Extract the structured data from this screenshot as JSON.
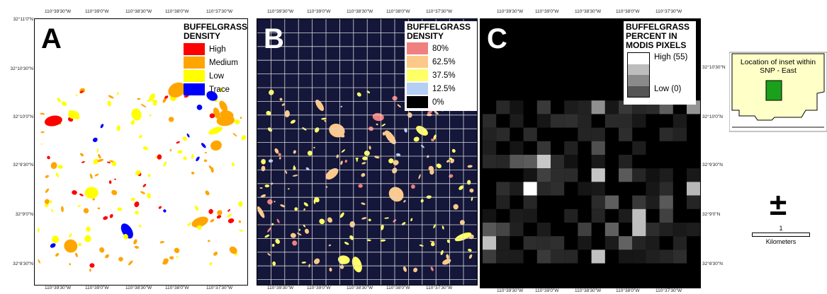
{
  "panels": {
    "a": {
      "letter": "A",
      "legend_title": "BUFFELGRASS DENSITY",
      "legend": [
        {
          "label": "High",
          "color": "#ff0000"
        },
        {
          "label": "Medium",
          "color": "#ffa500"
        },
        {
          "label": "Low",
          "color": "#ffff00"
        },
        {
          "label": "Trace",
          "color": "#0000ff"
        }
      ]
    },
    "b": {
      "letter": "B",
      "legend_title": "BUFFELGRASS DENSITY",
      "legend": [
        {
          "label": "80%",
          "color": "#f08080"
        },
        {
          "label": "62.5%",
          "color": "#fcc98a"
        },
        {
          "label": "37.5%",
          "color": "#ffff66"
        },
        {
          "label": "12.5%",
          "color": "#b5cef5"
        },
        {
          "label": "0%",
          "color": "#000000"
        }
      ]
    },
    "c": {
      "letter": "C",
      "legend_title": "BUFFELGRASS PERCENT IN MODIS PIXELS",
      "high_label": "High (55)",
      "low_label": "Low (0)"
    }
  },
  "lon_ticks": {
    "a_top": [
      "110°39'30\"W",
      "110°39'0\"W",
      "110°38'30\"W",
      "110°38'0\"W",
      "110°37'30\"W"
    ],
    "a_bottom": [
      "110°39'30\"W",
      "110°39'0\"W",
      "110°38'30\"W",
      "110°38'0\"W",
      "110°37'30\"W"
    ],
    "b_top": [
      "110°39'30\"W",
      "110°39'0\"W",
      "110°38'30\"W",
      "110°38'0\"W",
      "110°37'30\"W"
    ],
    "b_bottom": [
      "110°39'30\"W",
      "110°39'0\"W",
      "110°38'30\"W",
      "110°38'0\"W",
      "110°37'30\"W"
    ],
    "c_top": [
      "110°39'30\"W",
      "110°39'0\"W",
      "110°38'30\"W",
      "110°38'0\"W",
      "110°37'30\"W"
    ],
    "c_bottom": [
      "110°39'30\"W",
      "110°39'0\"W",
      "110°38'30\"W",
      "110°38'0\"W",
      "110°37'30\"W"
    ]
  },
  "lat_ticks": {
    "left": [
      "32°11'0\"N",
      "32°10'30\"N",
      "32°10'0\"N",
      "32°9'30\"N",
      "32°9'0\"N",
      "32°8'30\"N"
    ],
    "right": [
      "32°10'30\"N",
      "32°10'0\"N",
      "32°9'30\"N",
      "32°9'0\"N",
      "32°8'30\"N"
    ]
  },
  "inset": {
    "label": "Location of inset within SNP - East",
    "fill_color": "#ffffc8",
    "marker_color": "#1aa01a"
  },
  "north_arrow": {
    "symbol": "±"
  },
  "scale_bar": {
    "value": "1",
    "units": "Kilometers"
  },
  "colors": {
    "panel_b_background": "#14163a",
    "panel_c_background": "#000000"
  }
}
